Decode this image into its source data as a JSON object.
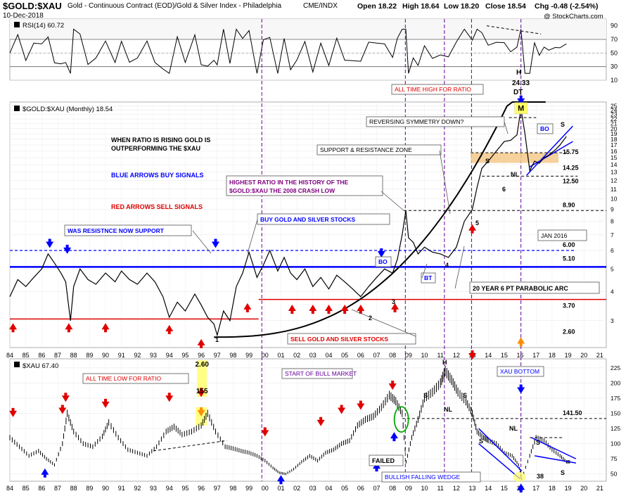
{
  "header": {
    "symbol": "$GOLD:$XAU",
    "description": "Gold - Continuous Contract (EOD)/Gold & Silver Index - Philadelphia",
    "exchange": "CME/INDX",
    "date": "10-Dec-2018",
    "open": "Open 18.22",
    "high": "High 18.64",
    "low": "Low 18.20",
    "close": "Close 18.54",
    "change": "Chg -0.48 (-2.54%)",
    "copyright": "@ StockCharts.com"
  },
  "colors": {
    "blue_line": "#0000ff",
    "red_line": "#e00000",
    "purple_vline": "#660099",
    "price_line": "#000000",
    "sr_zone": "#f5c98a",
    "highlight_yellow": "#ffff66",
    "ratio_label": "#800080"
  },
  "chart_data": [
    {
      "type": "line",
      "name": "rsi-panel",
      "title": "RSI(14) 60.72",
      "ylim": [
        10,
        100
      ],
      "ticks": [
        10,
        30,
        50,
        70,
        90
      ],
      "levels": [
        30,
        70
      ],
      "grid": true
    },
    {
      "type": "line",
      "name": "ratio-panel",
      "title": "$GOLD:$XAU (Monthly) 18.54",
      "scale": "log",
      "ylim": [
        2.3,
        26
      ],
      "ticks": [
        3,
        4,
        5,
        6,
        7,
        8,
        9,
        10,
        11,
        12,
        13,
        14,
        15,
        16,
        17,
        18,
        19,
        20,
        21,
        22,
        23,
        24,
        25
      ],
      "x_tick_labels": [
        "84",
        "85",
        "86",
        "87",
        "88",
        "89",
        "90",
        "91",
        "92",
        "93",
        "94",
        "95",
        "96",
        "97",
        "98",
        "99",
        "00",
        "01",
        "02",
        "03",
        "04",
        "05",
        "06",
        "07",
        "08",
        "09",
        "10",
        "11",
        "12",
        "13",
        "14",
        "15",
        "16",
        "17",
        "18",
        "19",
        "20",
        "21"
      ],
      "x_range": [
        1984.0,
        2021.4
      ],
      "series": [
        {
          "x": [
            1984.0,
            1984.5,
            1985.0,
            1985.5,
            1986.0,
            1986.4,
            1986.8,
            1987.2,
            1987.5,
            1987.8,
            1988.0,
            1988.4,
            1988.9,
            1989.4,
            1990.0,
            1990.6,
            1991.0,
            1991.5,
            1992.0,
            1992.6,
            1993.1,
            1993.6,
            1994.0,
            1994.5,
            1995.0,
            1995.6,
            1996.0,
            1996.4,
            1996.8,
            1997.0,
            1997.4,
            1997.8,
            1998.2,
            1998.6,
            1999.0,
            1999.5,
            1999.9,
            2000.3,
            2000.8,
            2001.2,
            2001.6,
            2002.0,
            2002.5,
            2003.0,
            2003.5,
            2004.0,
            2004.5,
            2005.0,
            2005.5,
            2006.0,
            2006.5,
            2007.0,
            2007.5,
            2008.0,
            2008.3,
            2008.6,
            2008.83,
            2009.0,
            2009.3,
            2009.6,
            2010.0,
            2010.5,
            2011.0,
            2011.5,
            2012.0,
            2012.5,
            2013.0,
            2013.3,
            2013.6,
            2014.0,
            2014.5,
            2015.0,
            2015.4,
            2015.8,
            2016.05,
            2016.3,
            2016.6,
            2016.9,
            2017.2,
            2017.5,
            2017.8,
            2018.2,
            2018.5,
            2018.9
          ],
          "values": [
            3.8,
            4.5,
            4.2,
            4.6,
            5.0,
            5.8,
            5.3,
            4.8,
            4.4,
            3.0,
            4.2,
            5.0,
            4.5,
            4.3,
            4.8,
            4.4,
            4.9,
            4.5,
            4.3,
            4.8,
            4.4,
            3.8,
            3.1,
            3.6,
            3.3,
            3.9,
            3.5,
            3.1,
            2.9,
            2.6,
            3.3,
            3.0,
            4.2,
            4.8,
            5.9,
            4.6,
            5.2,
            6.0,
            4.9,
            5.6,
            4.8,
            4.5,
            5.0,
            4.2,
            4.6,
            4.1,
            4.7,
            4.4,
            4.1,
            3.8,
            4.2,
            4.6,
            5.0,
            4.8,
            5.5,
            7.0,
            8.9,
            6.8,
            6.5,
            5.8,
            6.2,
            5.9,
            5.8,
            5.6,
            6.2,
            8.0,
            9.0,
            11.2,
            13.5,
            14.5,
            16.0,
            17.6,
            17.8,
            18.8,
            24.3,
            19.0,
            13.2,
            14.5,
            14.2,
            15.0,
            15.4,
            16.2,
            17.0,
            18.5
          ]
        }
      ],
      "levels": [
        {
          "label": "26.00",
          "value": 26.0
        },
        {
          "label": "15.75",
          "value": 15.75
        },
        {
          "label": "14.25",
          "value": 14.25
        },
        {
          "label": "12.50",
          "value": 12.5
        },
        {
          "label": "8.90",
          "value": 8.9
        },
        {
          "label": "6.00",
          "value": 6.0
        },
        {
          "label": "5.10",
          "value": 5.1
        },
        {
          "label": "3.70",
          "value": 3.7
        },
        {
          "label": "2.60",
          "value": 2.6
        }
      ]
    },
    {
      "type": "bar",
      "name": "xau-panel",
      "title": "$XAU 67.40",
      "ylim": [
        38,
        240
      ],
      "ticks": [
        50,
        75,
        100,
        125,
        150,
        175,
        200,
        225
      ],
      "x_range": [
        1984.0,
        2021.4
      ],
      "series": [
        {
          "x": [
            1984.0,
            1984.6,
            1985.2,
            1985.8,
            1986.3,
            1986.8,
            1987.3,
            1987.6,
            1988.0,
            1988.6,
            1989.2,
            1989.8,
            1990.2,
            1990.8,
            1991.4,
            1992.0,
            1992.6,
            1993.2,
            1993.8,
            1994.3,
            1994.8,
            1995.4,
            1996.0,
            1996.4,
            1996.9,
            1997.5,
            1998.0,
            1998.5,
            1999.0,
            1999.5,
            2000.0,
            2000.5,
            2000.9,
            2001.3,
            2001.8,
            2002.3,
            2002.8,
            2003.3,
            2003.8,
            2004.3,
            2004.8,
            2005.3,
            2005.8,
            2006.3,
            2006.8,
            2007.3,
            2007.8,
            2008.2,
            2008.6,
            2008.85,
            2009.2,
            2009.6,
            2010.0,
            2010.5,
            2011.0,
            2011.3,
            2011.7,
            2012.1,
            2012.6,
            2013.0,
            2013.3,
            2013.7,
            2014.0,
            2014.5,
            2015.0,
            2015.5,
            2015.9,
            2016.1,
            2016.6,
            2017.0,
            2017.5,
            2018.0,
            2018.5,
            2018.9
          ],
          "values": [
            110,
            95,
            80,
            88,
            75,
            65,
            100,
            150,
            120,
            100,
            95,
            112,
            135,
            110,
            90,
            85,
            80,
            95,
            120,
            128,
            115,
            120,
            130,
            150,
            120,
            95,
            92,
            88,
            85,
            80,
            72,
            60,
            52,
            50,
            58,
            70,
            80,
            72,
            85,
            90,
            100,
            105,
            130,
            140,
            145,
            160,
            180,
            170,
            150,
            70,
            110,
            140,
            175,
            185,
            200,
            220,
            205,
            185,
            170,
            150,
            120,
            110,
            105,
            100,
            85,
            80,
            65,
            42,
            80,
            110,
            105,
            90,
            80,
            70
          ]
        }
      ],
      "levels": [
        {
          "label": "141.50",
          "value": 141.5
        }
      ]
    }
  ],
  "annotations": {
    "rising_ratio": "WHEN RATIO IS RISING GOLD IS\nOUTPERFORMING THE $XAU",
    "blue_arrows": "BLUE ARROWS BUY SIGNALS",
    "red_arrows": "RED ARROWS SELL SIGNALS",
    "all_time_high_box": "ALL TIME HIGH FOR RATIO",
    "h_label": "H",
    "high_value": "24.33",
    "dt_label": "DT",
    "m_label": "M",
    "reversing_symmetry": "REVERSING SYMMETRY DOWN?",
    "support_resistance": "SUPPORT & RESISTANCE ZONE",
    "highest_ratio": "HIGHEST RATIO IN THE HISTORY OF THE\n$GOLD:$XAU THE 2008 CRASH LOW",
    "was_resistance": "WAS RESISTNCE NOW SUPPORT",
    "buy_stocks": "BUY GOLD AND SILVER STOCKS",
    "sell_stocks": "SELL GOLD AND SILVER STOCKS",
    "parabolic_arc": "20 YEAR 6 PT  PARABOLIC ARC",
    "jan_2016": "JAN 2016",
    "bo_1": "BO",
    "bo_2": "BO",
    "bt": "BT",
    "s_left": "S",
    "s_right": "S",
    "nl_top": "NL",
    "pt_1": "1",
    "pt_2": "2",
    "pt_3": "3",
    "pt_4": "4",
    "pt_5": "5",
    "pt_6": "6",
    "all_time_low_box": "ALL TIME LOW FOR RATIO",
    "low_value": "2.60",
    "xau_155": "155",
    "start_bull": "START OF BULL MARKET",
    "xau_bottom": "XAU BOTTOM",
    "failed": "FAILED",
    "bullish_wedge": "BULLISH FALLING WEDGE",
    "xau_h": "H",
    "xau_s1": "S",
    "xau_s2": "S",
    "xau_nl": "NL",
    "xau_nl2": "NL",
    "xau_s3": "S",
    "xau_s4": "S",
    "xau_s5": "S",
    "xau_38": "38"
  },
  "vlines": [
    1999.8,
    2008.8,
    2011.25,
    2012.95,
    2016.05
  ]
}
